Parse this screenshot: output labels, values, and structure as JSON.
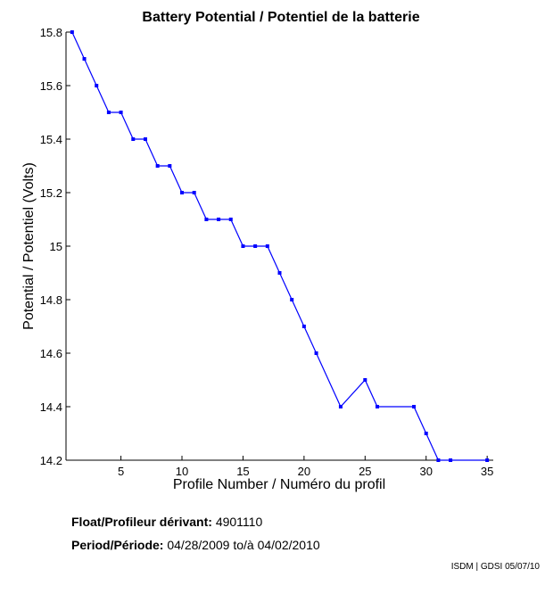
{
  "chart_data": {
    "type": "line",
    "title": "Battery Potential / Potentiel de la batterie",
    "xlabel": "Profile Number / Numéro du profil",
    "ylabel": "Potential / Potentiel (Volts)",
    "xlim": [
      0.5,
      35.5
    ],
    "ylim": [
      14.2,
      15.8
    ],
    "xticks": [
      5,
      10,
      15,
      20,
      25,
      30,
      35
    ],
    "yticks": [
      14.2,
      14.4,
      14.6,
      14.8,
      15,
      15.2,
      15.4,
      15.6,
      15.8
    ],
    "grid": false,
    "color": "#0000ff",
    "x": [
      1,
      2,
      3,
      4,
      5,
      6,
      7,
      8,
      9,
      10,
      11,
      12,
      13,
      14,
      15,
      16,
      17,
      18,
      19,
      20,
      21,
      23,
      25,
      26,
      29,
      30,
      31,
      32,
      35
    ],
    "y": [
      15.8,
      15.7,
      15.6,
      15.5,
      15.5,
      15.4,
      15.4,
      15.3,
      15.3,
      15.2,
      15.2,
      15.1,
      15.1,
      15.1,
      15.0,
      15.0,
      15.0,
      14.9,
      14.8,
      14.7,
      14.6,
      14.4,
      14.5,
      14.4,
      14.4,
      14.3,
      14.2,
      14.2,
      14.2
    ]
  },
  "info": {
    "float_label": "Float/Profileur dérivant:",
    "float_value": "4901110",
    "period_label": "Period/Période:",
    "period_start": "04/28/2009",
    "period_sep": "to/à",
    "period_end": "04/02/2010",
    "credit": "ISDM | GDSI 05/07/10"
  }
}
